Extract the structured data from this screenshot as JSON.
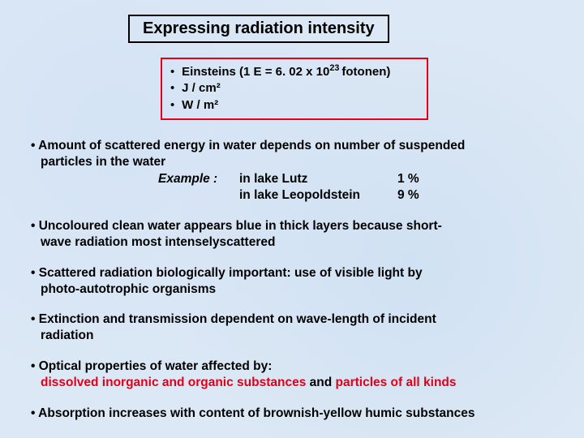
{
  "title": "Expressing radiation intensity",
  "units": {
    "line1_pre": "Einsteins (1 E = 6. 02 x 10",
    "line1_sup": "23 ",
    "line1_post": "fotonen)",
    "line2": "J / cm²",
    "line3": "W / m²"
  },
  "bullets": {
    "b1_a": "Amount of scattered energy in water depends on number of suspended",
    "b1_b": "particles in the water",
    "ex_label": "Example :",
    "ex_loc1": "in lake Lutz",
    "ex_val1": "1 %",
    "ex_loc2": "in lake Leopoldstein",
    "ex_val2": "9 %",
    "b2_a": "Uncoloured clean water appears blue in thick layers because short-",
    "b2_b": "wave radiation most intenselyscattered",
    "b3_a": "Scattered radiation biologically important: use of visible light by",
    "b3_b": "photo-autotrophic organisms",
    "b4_a": "Extinction and transmission dependent on wave-length of incident",
    "b4_b": "radiation",
    "b5_a": "Optical properties of water affected by:",
    "b5_red1": "dissolved inorganic and organic substances",
    "b5_mid": " and ",
    "b5_red2": "particles of all kinds",
    "b6": "Absorption increases with content of brownish-yellow humic substances"
  },
  "colors": {
    "background": "#dce8f5",
    "border_red": "#e2001a",
    "text_red": "#e2001a",
    "text": "#000000"
  }
}
